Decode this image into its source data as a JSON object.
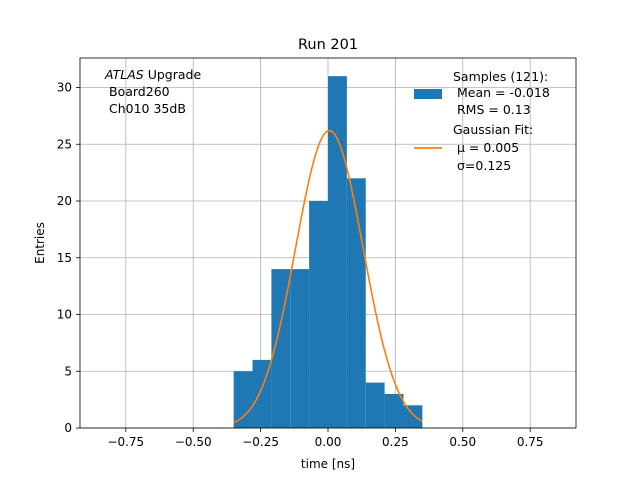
{
  "chart_data": {
    "type": "bar",
    "title": "Run 201",
    "xlabel": "time [ns]",
    "ylabel": "Entries",
    "xlim": [
      -0.92,
      0.92
    ],
    "ylim": [
      0,
      32.6
    ],
    "xticks": [
      -0.75,
      -0.5,
      -0.25,
      0.0,
      0.25,
      0.5,
      0.75
    ],
    "xtick_labels": [
      "−0.75",
      "−0.50",
      "−0.25",
      "0.00",
      "0.25",
      "0.50",
      "0.75"
    ],
    "yticks": [
      0,
      5,
      10,
      15,
      20,
      25,
      30
    ],
    "ytick_labels": [
      "0",
      "5",
      "10",
      "15",
      "20",
      "25",
      "30"
    ],
    "grid": true,
    "legend_position": "top-right",
    "annotation": {
      "italic": "ATLAS",
      "rest": " Upgrade",
      "line2": "Board260",
      "line3": "Ch010 35dB"
    },
    "histogram": {
      "name": "Samples (121):",
      "stats": [
        "Mean = -0.018",
        "RMS = 0.13"
      ],
      "color": "#1f77b4",
      "bin_edges": [
        -0.35,
        -0.28,
        -0.21,
        -0.14,
        -0.07,
        0.0,
        0.07,
        0.14,
        0.21,
        0.28,
        0.35
      ],
      "counts": [
        5,
        6,
        14,
        14,
        20,
        31,
        22,
        4,
        3,
        2
      ]
    },
    "fit": {
      "name": "Gaussian Fit:",
      "mu_label": "μ = 0.005",
      "sigma_label": "σ=0.125",
      "color": "#ff7f0e",
      "mu": 0.005,
      "sigma": 0.125,
      "amplitude": 26.2,
      "range": [
        -0.35,
        0.35
      ]
    }
  }
}
